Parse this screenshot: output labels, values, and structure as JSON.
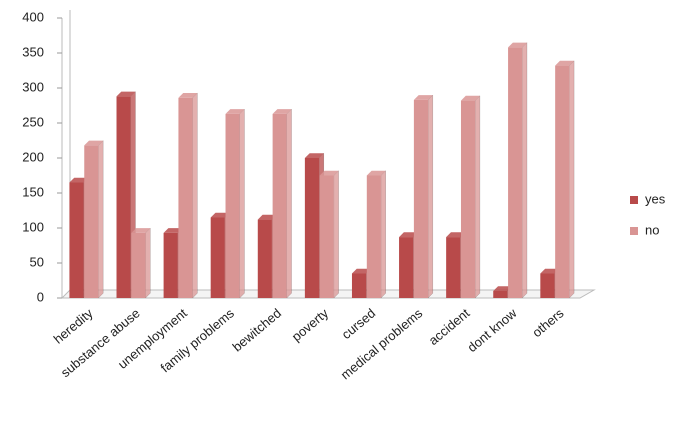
{
  "chart_data": {
    "type": "bar",
    "categories": [
      "heredity",
      "substance abuse",
      "unemployment",
      "family problems",
      "bewitched",
      "poverty",
      "cursed",
      "medical problems",
      "accident",
      "dont know",
      "others"
    ],
    "series": [
      {
        "name": "yes",
        "color": "#b84a4a",
        "values": [
          165,
          288,
          93,
          115,
          112,
          200,
          35,
          87,
          87,
          10,
          35
        ]
      },
      {
        "name": "no",
        "color": "#d99594",
        "values": [
          218,
          93,
          286,
          263,
          263,
          175,
          175,
          283,
          282,
          358,
          332
        ]
      }
    ],
    "ylim": [
      0,
      400
    ],
    "yticks": [
      0,
      50,
      100,
      150,
      200,
      250,
      300,
      350,
      400
    ],
    "legend": "right"
  }
}
